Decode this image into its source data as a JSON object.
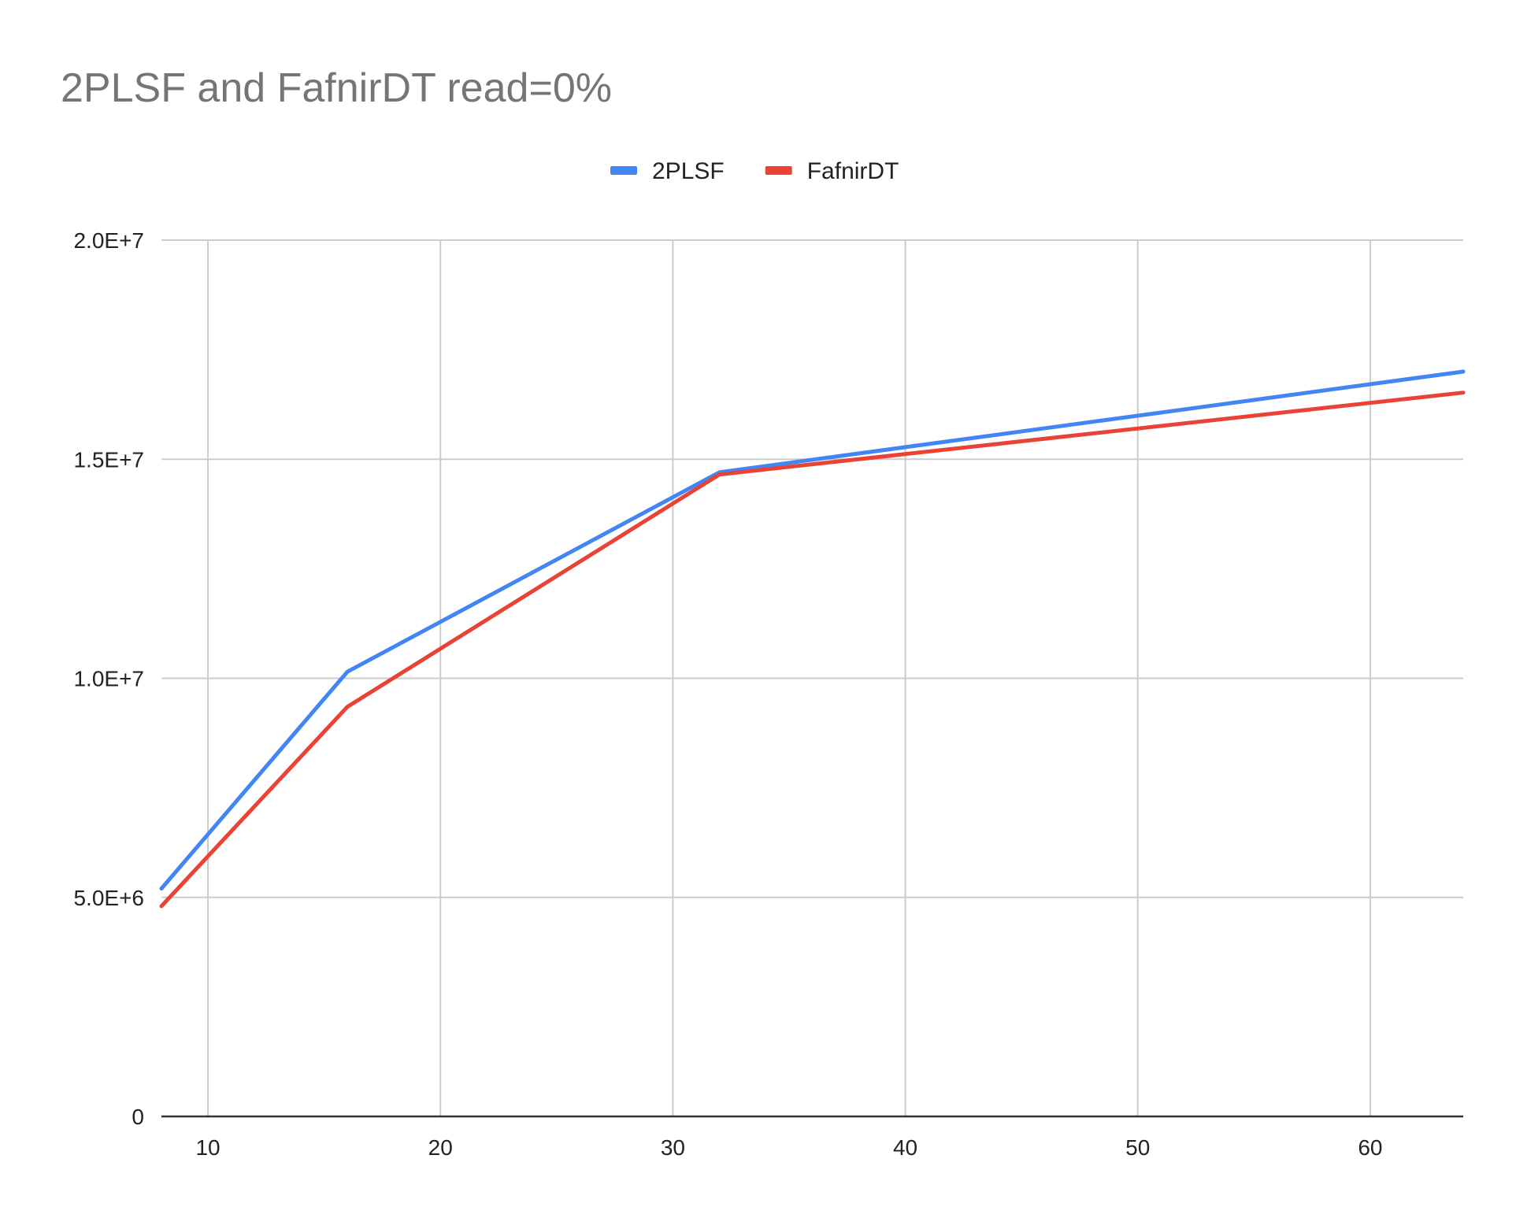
{
  "chart_data": {
    "type": "line",
    "title": "2PLSF and FafnirDT read=0%",
    "xlabel": "",
    "ylabel": "",
    "x": [
      8,
      16,
      32,
      64
    ],
    "xlim": [
      8,
      64
    ],
    "ylim": [
      0,
      20000000
    ],
    "xticks": [
      10,
      20,
      30,
      40,
      50,
      60
    ],
    "xtick_labels": [
      "10",
      "20",
      "30",
      "40",
      "50",
      "60"
    ],
    "yticks": [
      0,
      5000000,
      10000000,
      15000000,
      20000000
    ],
    "ytick_labels": [
      "0",
      "5.0E+6",
      "1.0E+7",
      "1.5E+7",
      "2.0E+7"
    ],
    "grid": true,
    "legend_position": "top-center",
    "series": [
      {
        "name": "2PLSF",
        "color": "#4285F4",
        "values": [
          5200000,
          10150000,
          14700000,
          17000000
        ]
      },
      {
        "name": "FafnirDT",
        "color": "#EA4335",
        "values": [
          4800000,
          9350000,
          14650000,
          16520000
        ]
      }
    ]
  }
}
